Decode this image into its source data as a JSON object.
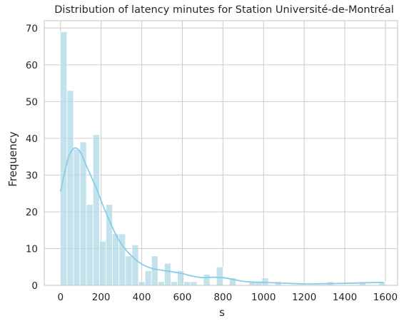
{
  "chart_data": {
    "type": "bar",
    "title": "Distribution of latency minutes for Station Université-de-Montréal",
    "xlabel": "s",
    "ylabel": "Frequency",
    "xlim": [
      -80,
      1660
    ],
    "ylim": [
      0,
      72
    ],
    "xticks": [
      0,
      200,
      400,
      600,
      800,
      1000,
      1200,
      1400,
      1600
    ],
    "yticks": [
      0,
      10,
      20,
      30,
      40,
      50,
      60,
      70
    ],
    "grid": true,
    "bin_width": 32,
    "bin_start": 0,
    "bins": [
      {
        "x0": 0,
        "x1": 32,
        "count": 69
      },
      {
        "x0": 32,
        "x1": 64,
        "count": 53
      },
      {
        "x0": 64,
        "x1": 96,
        "count": 37
      },
      {
        "x0": 96,
        "x1": 128,
        "count": 39
      },
      {
        "x0": 128,
        "x1": 160,
        "count": 22
      },
      {
        "x0": 160,
        "x1": 192,
        "count": 41
      },
      {
        "x0": 192,
        "x1": 224,
        "count": 12
      },
      {
        "x0": 224,
        "x1": 256,
        "count": 22
      },
      {
        "x0": 256,
        "x1": 288,
        "count": 14
      },
      {
        "x0": 288,
        "x1": 320,
        "count": 14
      },
      {
        "x0": 320,
        "x1": 352,
        "count": 8
      },
      {
        "x0": 352,
        "x1": 384,
        "count": 11
      },
      {
        "x0": 384,
        "x1": 416,
        "count": 1
      },
      {
        "x0": 416,
        "x1": 448,
        "count": 4
      },
      {
        "x0": 448,
        "x1": 480,
        "count": 8
      },
      {
        "x0": 480,
        "x1": 512,
        "count": 1
      },
      {
        "x0": 512,
        "x1": 544,
        "count": 6
      },
      {
        "x0": 544,
        "x1": 576,
        "count": 1
      },
      {
        "x0": 576,
        "x1": 608,
        "count": 4
      },
      {
        "x0": 608,
        "x1": 640,
        "count": 1
      },
      {
        "x0": 640,
        "x1": 672,
        "count": 1
      },
      {
        "x0": 704,
        "x1": 736,
        "count": 3
      },
      {
        "x0": 768,
        "x1": 800,
        "count": 5
      },
      {
        "x0": 832,
        "x1": 864,
        "count": 2
      },
      {
        "x0": 928,
        "x1": 960,
        "count": 1
      },
      {
        "x0": 960,
        "x1": 992,
        "count": 1
      },
      {
        "x0": 992,
        "x1": 1024,
        "count": 2
      },
      {
        "x0": 1056,
        "x1": 1088,
        "count": 1
      },
      {
        "x0": 1312,
        "x1": 1344,
        "count": 1
      },
      {
        "x0": 1472,
        "x1": 1504,
        "count": 1
      },
      {
        "x0": 1568,
        "x1": 1600,
        "count": 1
      }
    ],
    "kde": {
      "x": [
        0,
        20,
        40,
        60,
        80,
        100,
        120,
        140,
        160,
        180,
        200,
        220,
        250,
        280,
        320,
        360,
        400,
        450,
        500,
        550,
        600,
        650,
        700,
        750,
        800,
        850,
        900,
        950,
        1000,
        1100,
        1200,
        1300,
        1400,
        1500,
        1590
      ],
      "y": [
        25.5,
        30.5,
        35,
        37,
        37.3,
        36,
        33.5,
        31,
        28.5,
        26,
        23,
        20.3,
        16.5,
        13,
        9.8,
        7.5,
        5.8,
        4.6,
        4.1,
        3.7,
        3.2,
        2.5,
        2.1,
        2.2,
        2.1,
        1.6,
        1.1,
        0.9,
        0.8,
        0.6,
        0.4,
        0.45,
        0.55,
        0.7,
        0.8
      ]
    },
    "colors": {
      "bar_fill": "#add8e6",
      "kde_line": "#87ceeb",
      "grid": "#cccccc"
    }
  }
}
